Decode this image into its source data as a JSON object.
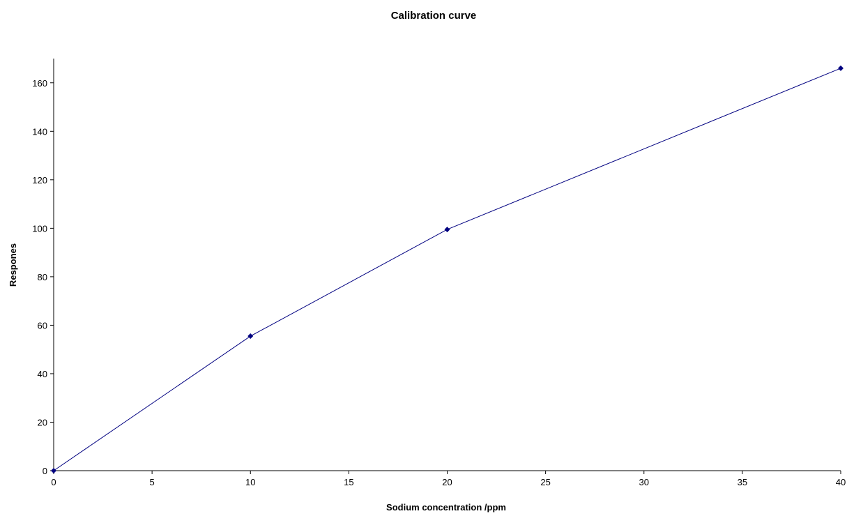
{
  "chart_data": {
    "type": "line",
    "title": "Calibration curve",
    "xlabel": "Sodium concentration /ppm",
    "ylabel": "Respones",
    "xlim": [
      0,
      40
    ],
    "ylim": [
      0,
      170
    ],
    "xticks": [
      0,
      5,
      10,
      15,
      20,
      25,
      30,
      35,
      40
    ],
    "yticks": [
      0,
      20,
      40,
      60,
      80,
      100,
      120,
      140,
      160
    ],
    "grid": false,
    "legend": "none",
    "series": [
      {
        "x": [
          0,
          10,
          20,
          40
        ],
        "y": [
          0,
          55.5,
          99.5,
          166
        ],
        "color": "#000080",
        "marker": "diamond"
      }
    ]
  }
}
